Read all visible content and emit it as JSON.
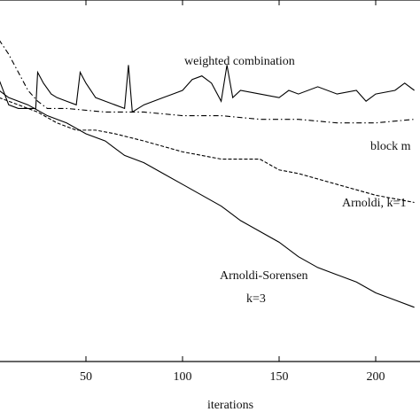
{
  "chart_data": {
    "type": "line",
    "xlabel": "iterations",
    "xlim": [
      0,
      230
    ],
    "xticks": [
      50,
      100,
      150,
      200
    ],
    "ylim": [
      0,
      10
    ],
    "annotations": [
      "weighted combination",
      "block m",
      "Arnoldi, k=1",
      "Arnoldi-Sorensen",
      "k=3"
    ],
    "series": [
      {
        "name": "weighted combination",
        "color": "#000",
        "dash": "none",
        "x": [
          5,
          10,
          15,
          20,
          24,
          25,
          28,
          32,
          35,
          40,
          45,
          47,
          50,
          55,
          60,
          65,
          70,
          72,
          74,
          80,
          90,
          95,
          100,
          105,
          110,
          115,
          120,
          123,
          126,
          130,
          140,
          150,
          155,
          160,
          170,
          180,
          190,
          195,
          200,
          210,
          215,
          220
        ],
        "values": [
          7.8,
          7.1,
          7.0,
          7.0,
          7.0,
          8.0,
          7.7,
          7.4,
          7.3,
          7.2,
          7.1,
          8.0,
          7.7,
          7.3,
          7.2,
          7.1,
          7.0,
          8.2,
          6.9,
          7.1,
          7.3,
          7.4,
          7.5,
          7.8,
          7.9,
          7.7,
          7.2,
          8.2,
          7.3,
          7.5,
          7.4,
          7.3,
          7.5,
          7.4,
          7.6,
          7.4,
          7.5,
          7.2,
          7.4,
          7.5,
          7.7,
          7.5
        ]
      },
      {
        "name": "block m",
        "color": "#000",
        "dash": "6,3,1.5,3",
        "x": [
          5,
          10,
          15,
          20,
          25,
          30,
          40,
          60,
          80,
          100,
          120,
          140,
          160,
          180,
          200,
          220
        ],
        "values": [
          8.9,
          8.5,
          8.0,
          7.5,
          7.2,
          7.0,
          7.0,
          6.9,
          6.9,
          6.8,
          6.8,
          6.7,
          6.7,
          6.6,
          6.6,
          6.7
        ]
      },
      {
        "name": "Arnoldi, k=1",
        "color": "#000",
        "dash": "4,2",
        "x": [
          5,
          15,
          25,
          35,
          45,
          55,
          65,
          80,
          100,
          120,
          140,
          150,
          160,
          180,
          200,
          210,
          220
        ],
        "values": [
          7.3,
          7.1,
          6.9,
          6.6,
          6.4,
          6.4,
          6.3,
          6.1,
          5.8,
          5.6,
          5.6,
          5.3,
          5.2,
          4.9,
          4.6,
          4.5,
          4.4
        ]
      },
      {
        "name": "Arnoldi-Sorensen",
        "color": "#000",
        "dash": "none",
        "x": [
          5,
          10,
          20,
          30,
          40,
          50,
          60,
          70,
          80,
          90,
          100,
          110,
          120,
          130,
          140,
          150,
          160,
          170,
          180,
          190,
          200,
          210,
          220
        ],
        "values": [
          7.5,
          7.3,
          7.1,
          6.8,
          6.6,
          6.3,
          6.1,
          5.7,
          5.5,
          5.2,
          4.9,
          4.6,
          4.3,
          3.9,
          3.6,
          3.3,
          2.9,
          2.6,
          2.4,
          2.2,
          1.9,
          1.7,
          1.5
        ]
      }
    ]
  }
}
